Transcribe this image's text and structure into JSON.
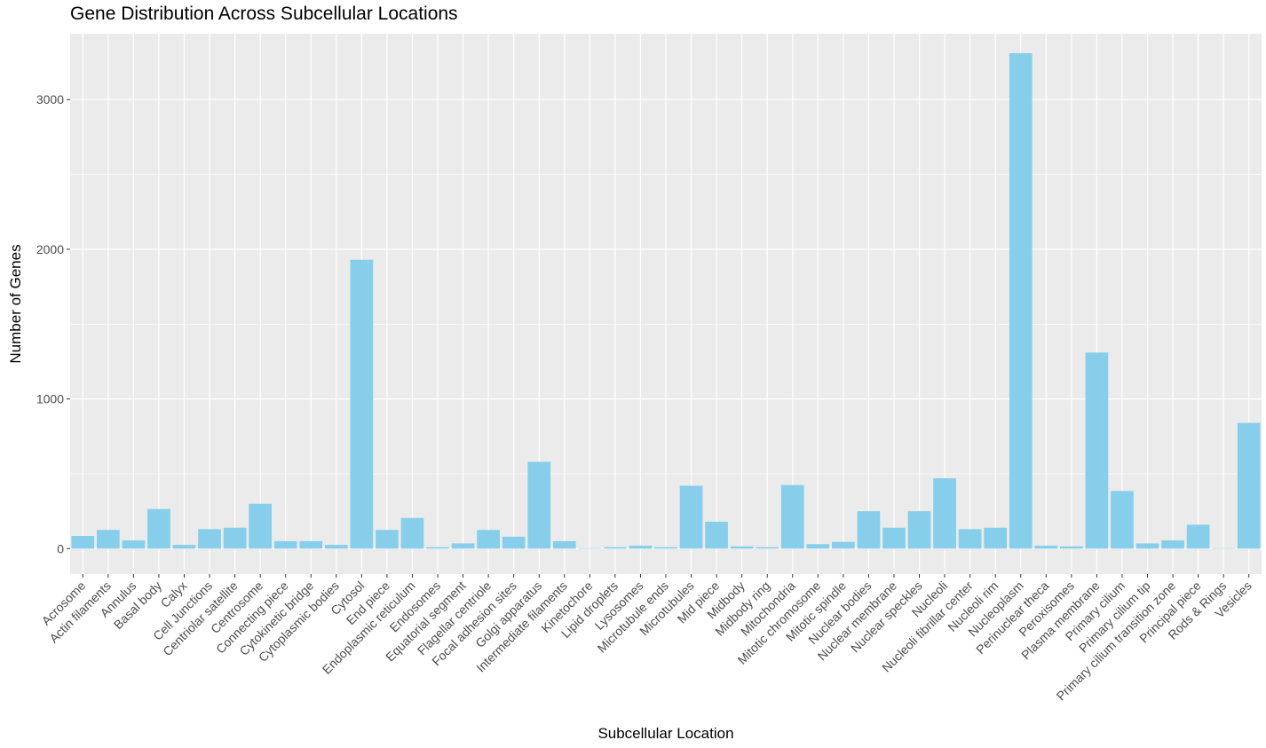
{
  "chart_data": {
    "type": "bar",
    "title": "Gene Distribution Across Subcellular Locations",
    "xlabel": "Subcellular Location",
    "ylabel": "Number of Genes",
    "ylim": [
      -170,
      3440
    ],
    "yticks": [
      0,
      1000,
      2000,
      3000
    ],
    "grid": true,
    "bar_color": "#87CEEB",
    "panel_background": "#EBEBEB",
    "grid_color": "#FFFFFF",
    "categories": [
      "Acrosome",
      "Actin filaments",
      "Annulus",
      "Basal body",
      "Calyx",
      "Cell Junctions",
      "Centriolar satellite",
      "Centrosome",
      "Connecting piece",
      "Cytokinetic bridge",
      "Cytoplasmic bodies",
      "Cytosol",
      "End piece",
      "Endoplasmic reticulum",
      "Endosomes",
      "Equatorial segment",
      "Flagellar centriole",
      "Focal adhesion sites",
      "Golgi apparatus",
      "Intermediate filaments",
      "Kinetochore",
      "Lipid droplets",
      "Lysosomes",
      "Microtubule ends",
      "Microtubules",
      "Mid piece",
      "Midbody",
      "Midbody ring",
      "Mitochondria",
      "Mitotic chromosome",
      "Mitotic spindle",
      "Nuclear bodies",
      "Nuclear membrane",
      "Nuclear speckles",
      "Nucleoli",
      "Nucleoli fibrillar center",
      "Nucleoli rim",
      "Nucleoplasm",
      "Perinuclear theca",
      "Peroxisomes",
      "Plasma membrane",
      "Primary cilium",
      "Primary cilium tip",
      "Primary cilium transition zone",
      "Principal piece",
      "Rods & Rings",
      "Vesicles"
    ],
    "values": [
      85,
      125,
      55,
      265,
      25,
      130,
      140,
      300,
      50,
      50,
      25,
      1930,
      125,
      205,
      10,
      35,
      125,
      80,
      580,
      50,
      3,
      10,
      20,
      10,
      420,
      180,
      15,
      10,
      425,
      30,
      45,
      250,
      140,
      250,
      470,
      130,
      140,
      3310,
      20,
      15,
      1310,
      385,
      35,
      55,
      160,
      3,
      840
    ]
  }
}
